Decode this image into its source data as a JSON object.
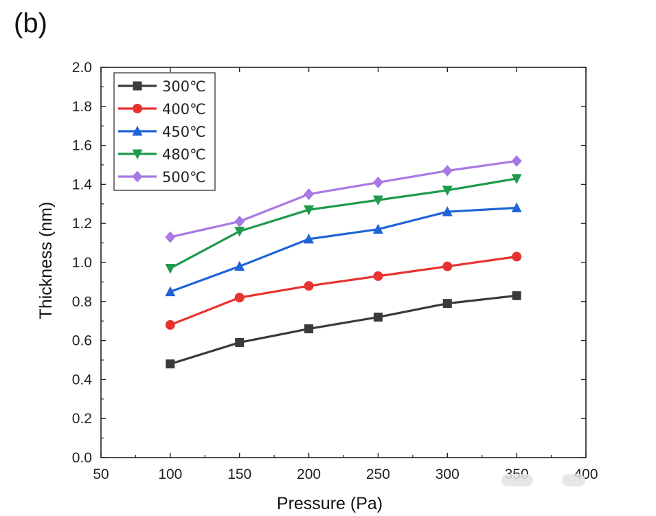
{
  "panel_label": "(b)",
  "chart_data": {
    "type": "line",
    "xlabel": "Pressure (Pa)",
    "ylabel": "Thickness (nm)",
    "xlim": [
      50,
      400
    ],
    "ylim": [
      0.0,
      2.0
    ],
    "x_ticks": [
      50,
      100,
      150,
      200,
      250,
      300,
      350,
      400
    ],
    "x_tick_labels": [
      "50",
      "100",
      "150",
      "200",
      "250",
      "300",
      "350",
      "400"
    ],
    "y_ticks": [
      0.0,
      0.2,
      0.4,
      0.6,
      0.8,
      1.0,
      1.2,
      1.4,
      1.6,
      1.8,
      2.0
    ],
    "y_tick_labels": [
      "0.0",
      "0.2",
      "0.4",
      "0.6",
      "0.8",
      "1.0",
      "1.2",
      "1.4",
      "1.6",
      "1.8",
      "2.0"
    ],
    "x": [
      100,
      150,
      200,
      250,
      300,
      350
    ],
    "grid": false,
    "legend_position": "top-left",
    "series": [
      {
        "name": "300℃",
        "color": "#3a3a3a",
        "marker": "square",
        "values": [
          0.48,
          0.59,
          0.66,
          0.72,
          0.79,
          0.83
        ]
      },
      {
        "name": "400℃",
        "color": "#e8322f",
        "marker": "circle",
        "values": [
          0.68,
          0.82,
          0.88,
          0.93,
          0.98,
          1.03
        ]
      },
      {
        "name": "450℃",
        "color": "#1f63d6",
        "marker": "triangle-up",
        "values": [
          0.85,
          0.98,
          1.12,
          1.17,
          1.26,
          1.28
        ]
      },
      {
        "name": "480℃",
        "color": "#1e9a4c",
        "marker": "triangle-down",
        "values": [
          0.97,
          1.16,
          1.27,
          1.32,
          1.37,
          1.43
        ]
      },
      {
        "name": "500℃",
        "color": "#a879e3",
        "marker": "diamond",
        "values": [
          1.13,
          1.21,
          1.35,
          1.41,
          1.47,
          1.52
        ]
      }
    ]
  }
}
